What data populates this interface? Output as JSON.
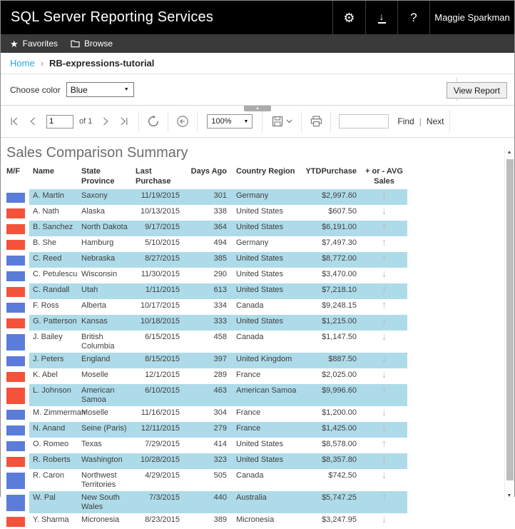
{
  "header": {
    "title": "SQL Server Reporting Services",
    "user": "Maggie Sparkman"
  },
  "nav": {
    "favorites": "Favorites",
    "browse": "Browse"
  },
  "breadcrumb": {
    "home": "Home",
    "separator": "›",
    "current": "RB-expressions-tutorial"
  },
  "parameters": {
    "label": "Choose color",
    "selected": "Blue",
    "view_report": "View Report"
  },
  "toolbar": {
    "page": "1",
    "of": "of",
    "pages": "1",
    "zoom": "100%",
    "find": "Find",
    "next": "Next",
    "find_value": ""
  },
  "report": {
    "title": "Sales Comparison Summary",
    "table": {
      "columns": [
        "M/F",
        "Name",
        "State Province",
        "Last Purchase",
        "Days Ago",
        "Country Region",
        "YTDPurchase",
        "+ or - AVG Sales"
      ],
      "rows": [
        {
          "square": "blue",
          "name": "A. Martin",
          "state": "Saxony",
          "last_purchase": "11/19/2015",
          "days_ago": "301",
          "country": "Germany",
          "ytd": "$2,997.60",
          "trend": "down"
        },
        {
          "square": "red",
          "name": "A. Nath",
          "state": "Alaska",
          "last_purchase": "10/13/2015",
          "days_ago": "338",
          "country": "United States",
          "ytd": "$607.50",
          "trend": "down"
        },
        {
          "square": "red",
          "name": "B. Sanchez",
          "state": "North Dakota",
          "last_purchase": "9/17/2015",
          "days_ago": "364",
          "country": "United States",
          "ytd": "$6,191.00",
          "trend": "up"
        },
        {
          "square": "red",
          "name": "B. She",
          "state": "Hamburg",
          "last_purchase": "5/10/2015",
          "days_ago": "494",
          "country": "Germany",
          "ytd": "$7,497.30",
          "trend": "up"
        },
        {
          "square": "blue",
          "name": "C. Reed",
          "state": "Nebraska",
          "last_purchase": "8/27/2015",
          "days_ago": "385",
          "country": "United States",
          "ytd": "$8,772.00",
          "trend": "up"
        },
        {
          "square": "blue",
          "name": "C. Petulescu",
          "state": "Wisconsin",
          "last_purchase": "11/30/2015",
          "days_ago": "290",
          "country": "United States",
          "ytd": "$3,470.00",
          "trend": "down"
        },
        {
          "square": "red",
          "name": "C. Randall",
          "state": "Utah",
          "last_purchase": "1/11/2015",
          "days_ago": "613",
          "country": "United States",
          "ytd": "$7,218.10",
          "trend": "up"
        },
        {
          "square": "blue",
          "name": "F. Ross",
          "state": "Alberta",
          "last_purchase": "10/17/2015",
          "days_ago": "334",
          "country": "Canada",
          "ytd": "$9,248.15",
          "trend": "up"
        },
        {
          "square": "red",
          "name": "G. Patterson",
          "state": "Kansas",
          "last_purchase": "10/18/2015",
          "days_ago": "333",
          "country": "United States",
          "ytd": "$1,215.00",
          "trend": "down"
        },
        {
          "square": "blue",
          "name": "J. Bailey",
          "state": "British Columbia",
          "last_purchase": "6/15/2015",
          "days_ago": "458",
          "country": "Canada",
          "ytd": "$1,147.50",
          "trend": "down"
        },
        {
          "square": "blue",
          "name": "J. Peters",
          "state": "England",
          "last_purchase": "8/15/2015",
          "days_ago": "397",
          "country": "United Kingdom",
          "ytd": "$887.50",
          "trend": "down"
        },
        {
          "square": "red",
          "name": "K. Abel",
          "state": "Moselle",
          "last_purchase": "12/1/2015",
          "days_ago": "289",
          "country": "France",
          "ytd": "$2,025.00",
          "trend": "down"
        },
        {
          "square": "red",
          "name": "L. Johnson",
          "state": "American Samoa",
          "last_purchase": "6/10/2015",
          "days_ago": "463",
          "country": "American Samoa",
          "ytd": "$9,996.60",
          "trend": "up"
        },
        {
          "square": "blue",
          "name": "M. Zimmerman",
          "state": "Moselle",
          "last_purchase": "11/16/2015",
          "days_ago": "304",
          "country": "France",
          "ytd": "$1,200.00",
          "trend": "down"
        },
        {
          "square": "blue",
          "name": "N. Anand",
          "state": "Seine (Paris)",
          "last_purchase": "12/11/2015",
          "days_ago": "279",
          "country": "France",
          "ytd": "$1,425.00",
          "trend": "down"
        },
        {
          "square": "blue",
          "name": "O. Romeo",
          "state": "Texas",
          "last_purchase": "7/29/2015",
          "days_ago": "414",
          "country": "United States",
          "ytd": "$8,578.00",
          "trend": "up"
        },
        {
          "square": "red",
          "name": "R. Roberts",
          "state": "Washington",
          "last_purchase": "10/28/2015",
          "days_ago": "323",
          "country": "United States",
          "ytd": "$8,357.80",
          "trend": "up"
        },
        {
          "square": "blue",
          "name": "R. Caron",
          "state": "Northwest Territories",
          "last_purchase": "4/29/2015",
          "days_ago": "505",
          "country": "Canada",
          "ytd": "$742.50",
          "trend": "down"
        },
        {
          "square": "blue",
          "name": "W. Pal",
          "state": "New South Wales",
          "last_purchase": "7/3/2015",
          "days_ago": "440",
          "country": "Australia",
          "ytd": "$5,747.25",
          "trend": "up"
        },
        {
          "square": "red",
          "name": "Y. Sharma",
          "state": "Micronesia",
          "last_purchase": "8/23/2015",
          "days_ago": "389",
          "country": "Micronesia",
          "ytd": "$3,247.95",
          "trend": "down"
        }
      ]
    }
  },
  "colors": {
    "male_square": "#5b7dd9",
    "female_square": "#f4523b",
    "row_stripe": "#aedbe9",
    "link": "#27a7e0"
  }
}
